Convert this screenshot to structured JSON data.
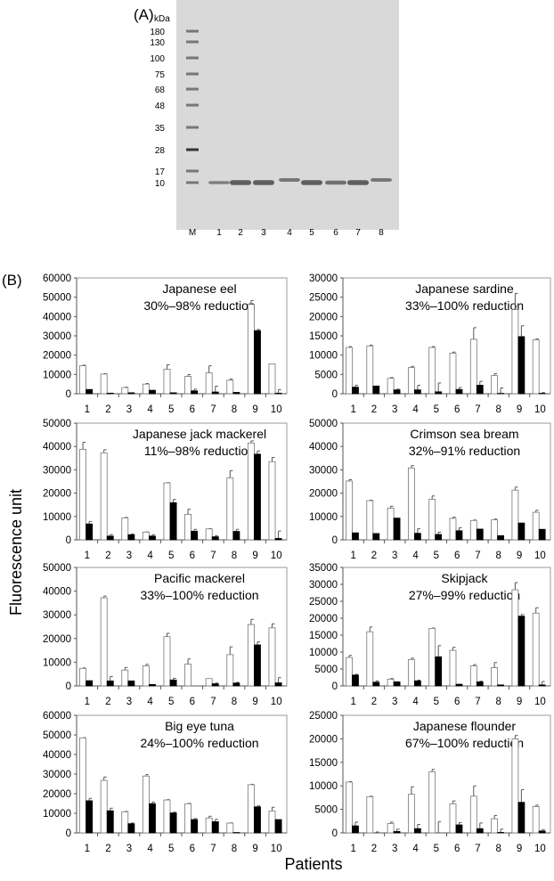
{
  "panel_a": {
    "label": "(A)",
    "unit": "kDa",
    "markers": [
      "180",
      "130",
      "100",
      "75",
      "68",
      "48",
      "35",
      "28",
      "17",
      "10"
    ],
    "lanes": [
      "M",
      "1",
      "2",
      "3",
      "4",
      "5",
      "6",
      "7",
      "8"
    ]
  },
  "panel_b": {
    "label": "(B)"
  },
  "shared": {
    "ylabel": "Fluorescence unit",
    "xlabel": "Patients",
    "colors": {
      "before": "#ffffff",
      "after": "#000000"
    }
  },
  "chart_data": [
    {
      "type": "bar",
      "title": "Japanese eel",
      "subtitle": "30%–98% reduction",
      "categories": [
        "1",
        "2",
        "3",
        "4",
        "5",
        "6",
        "7",
        "8",
        "9",
        "10"
      ],
      "ylim": [
        0,
        60000
      ],
      "yticks": [
        0,
        10000,
        20000,
        30000,
        40000,
        50000,
        60000
      ],
      "series": [
        {
          "values": [
            14500,
            10200,
            3200,
            5000,
            12700,
            9000,
            10800,
            7000,
            46300,
            15500
          ],
          "err": [
            300,
            200,
            200,
            300,
            2300,
            900,
            3700,
            600,
            2000,
            0
          ]
        },
        {
          "values": [
            2200,
            300,
            500,
            1800,
            500,
            1500,
            900,
            700,
            32700,
            300
          ],
          "err": [
            0,
            0,
            0,
            0,
            0,
            900,
            3000,
            0,
            600,
            1800
          ]
        }
      ]
    },
    {
      "type": "bar",
      "title": "Japanese sardine",
      "subtitle": "33%–100% reduction",
      "categories": [
        "1",
        "2",
        "3",
        "4",
        "5",
        "6",
        "7",
        "8",
        "9",
        "10"
      ],
      "ylim": [
        0,
        30000
      ],
      "yticks": [
        0,
        5000,
        10000,
        15000,
        20000,
        25000,
        30000
      ],
      "series": [
        {
          "values": [
            12000,
            12400,
            4000,
            6800,
            12000,
            10500,
            14100,
            4700,
            21800,
            14000
          ],
          "err": [
            200,
            200,
            200,
            300,
            200,
            300,
            3000,
            500,
            4200,
            200
          ]
        },
        {
          "values": [
            1700,
            2000,
            1000,
            1000,
            500,
            1100,
            2200,
            100,
            14800,
            100
          ],
          "err": [
            500,
            0,
            200,
            1200,
            2300,
            500,
            1000,
            1400,
            2800,
            200
          ]
        }
      ]
    },
    {
      "type": "bar",
      "title": "Japanese jack mackerel",
      "subtitle": "11%–98% reduction",
      "categories": [
        "1",
        "2",
        "3",
        "4",
        "5",
        "6",
        "7",
        "8",
        "9",
        "10"
      ],
      "ylim": [
        0,
        50000
      ],
      "yticks": [
        0,
        10000,
        20000,
        30000,
        40000,
        50000
      ],
      "series": [
        {
          "values": [
            38800,
            37300,
            9400,
            3300,
            24400,
            10900,
            4700,
            26600,
            41500,
            33500
          ],
          "err": [
            3000,
            1300,
            200,
            100,
            100,
            2200,
            100,
            3000,
            900,
            1800
          ]
        },
        {
          "values": [
            6800,
            1600,
            2200,
            1600,
            15900,
            3700,
            1300,
            3600,
            36700,
            600
          ],
          "err": [
            1100,
            700,
            300,
            600,
            1400,
            800,
            500,
            900,
            1400,
            3200
          ]
        }
      ]
    },
    {
      "type": "bar",
      "title": "Crimson sea bream",
      "subtitle": "32%–91% reduction",
      "categories": [
        "1",
        "2",
        "3",
        "4",
        "5",
        "6",
        "7",
        "8",
        "9",
        "10"
      ],
      "ylim": [
        0,
        50000
      ],
      "yticks": [
        0,
        10000,
        20000,
        30000,
        40000,
        50000
      ],
      "series": [
        {
          "values": [
            25200,
            16800,
            13600,
            30800,
            17400,
            9200,
            8300,
            8600,
            21300,
            11800
          ],
          "err": [
            600,
            200,
            800,
            1000,
            1400,
            500,
            200,
            300,
            1300,
            900
          ]
        },
        {
          "values": [
            3000,
            2700,
            9300,
            2800,
            2300,
            3900,
            4600,
            1800,
            7200,
            4500
          ],
          "err": [
            0,
            0,
            0,
            2000,
            1000,
            1300,
            0,
            0,
            0,
            0
          ]
        }
      ]
    },
    {
      "type": "bar",
      "title": "Pacific mackerel",
      "subtitle": "33%–100% reduction",
      "categories": [
        "1",
        "2",
        "3",
        "4",
        "5",
        "6",
        "7",
        "8",
        "9",
        "10"
      ],
      "ylim": [
        0,
        50000
      ],
      "yticks": [
        0,
        10000,
        20000,
        30000,
        40000,
        50000
      ],
      "series": [
        {
          "values": [
            7400,
            37200,
            6700,
            8500,
            20800,
            9200,
            3100,
            13200,
            25900,
            24500
          ],
          "err": [
            200,
            700,
            1100,
            600,
            1400,
            2200,
            0,
            3300,
            2200,
            1700
          ]
        },
        {
          "values": [
            2200,
            2100,
            2100,
            600,
            2500,
            0,
            900,
            1200,
            17300,
            1300
          ],
          "err": [
            0,
            1900,
            0,
            0,
            700,
            0,
            300,
            300,
            1300,
            2200
          ]
        }
      ]
    },
    {
      "type": "bar",
      "title": "Skipjack",
      "subtitle": "27%–99% reduction",
      "categories": [
        "1",
        "2",
        "3",
        "4",
        "5",
        "6",
        "7",
        "8",
        "9",
        "10"
      ],
      "ylim": [
        0,
        35000
      ],
      "yticks": [
        0,
        5000,
        10000,
        15000,
        20000,
        25000,
        30000,
        35000
      ],
      "series": [
        {
          "values": [
            8400,
            16000,
            2000,
            7800,
            17000,
            10500,
            5900,
            5400,
            28400,
            21500
          ],
          "err": [
            600,
            1400,
            200,
            400,
            100,
            900,
            400,
            1500,
            2100,
            1600
          ]
        },
        {
          "values": [
            3200,
            1100,
            1200,
            1500,
            8600,
            500,
            1200,
            300,
            20600,
            300
          ],
          "err": [
            200,
            400,
            0,
            200,
            3300,
            0,
            200,
            0,
            500,
            1000
          ]
        }
      ]
    },
    {
      "type": "bar",
      "title": "Big eye tuna",
      "subtitle": "24%–100% reduction",
      "categories": [
        "1",
        "2",
        "3",
        "4",
        "5",
        "6",
        "7",
        "8",
        "9",
        "10"
      ],
      "ylim": [
        0,
        60000
      ],
      "yticks": [
        0,
        10000,
        20000,
        30000,
        40000,
        50000,
        60000
      ],
      "series": [
        {
          "values": [
            48500,
            26800,
            10800,
            29000,
            16800,
            14900,
            7600,
            5000,
            24600,
            11200
          ],
          "err": [
            100,
            1700,
            200,
            800,
            200,
            200,
            900,
            100,
            200,
            1900
          ]
        },
        {
          "values": [
            16400,
            11300,
            4700,
            14900,
            10200,
            6800,
            5700,
            200,
            13300,
            6800
          ],
          "err": [
            1200,
            1300,
            400,
            800,
            400,
            500,
            1200,
            0,
            500,
            0
          ]
        }
      ]
    },
    {
      "type": "bar",
      "title": "Japanese flounder",
      "subtitle": "67%–100% reduction",
      "categories": [
        "1",
        "2",
        "3",
        "4",
        "5",
        "6",
        "7",
        "8",
        "9",
        "10"
      ],
      "ylim": [
        0,
        25000
      ],
      "yticks": [
        0,
        5000,
        10000,
        15000,
        20000,
        25000
      ],
      "series": [
        {
          "values": [
            10800,
            7700,
            2000,
            8200,
            13000,
            6200,
            7800,
            3000,
            20000,
            5600
          ],
          "err": [
            100,
            100,
            300,
            1600,
            500,
            600,
            2200,
            700,
            700,
            300
          ]
        },
        {
          "values": [
            1500,
            0,
            300,
            900,
            0,
            1700,
            900,
            100,
            6500,
            400
          ],
          "err": [
            800,
            200,
            500,
            900,
            2400,
            500,
            1200,
            700,
            2700,
            300
          ]
        }
      ]
    }
  ]
}
